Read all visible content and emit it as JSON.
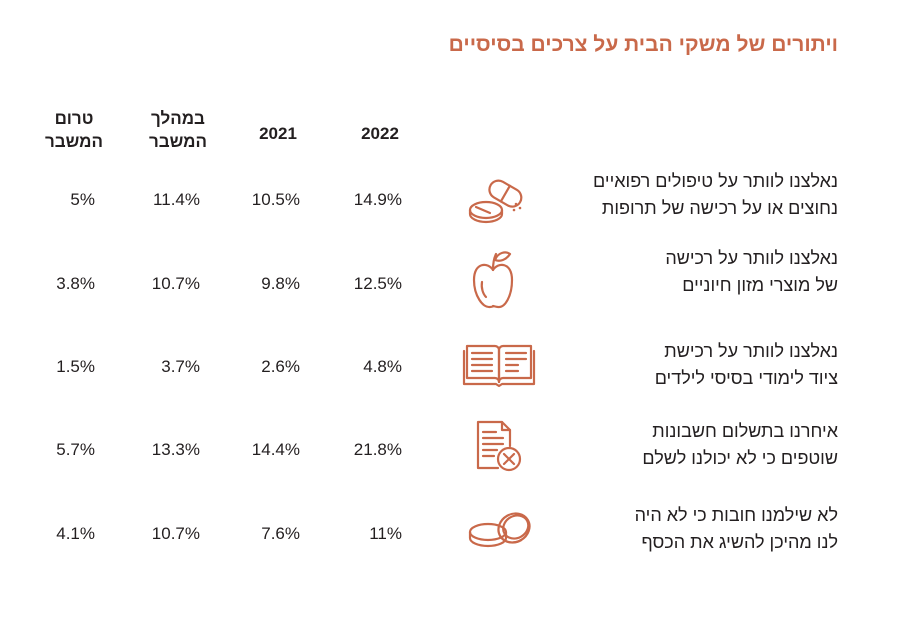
{
  "title": "ויתורים של משקי הבית על צרכים בסיסיים",
  "colors": {
    "accent": "#c9694a",
    "text": "#231f20"
  },
  "columns": [
    {
      "key": "y2022",
      "label": "2022"
    },
    {
      "key": "y2021",
      "label": "2021"
    },
    {
      "key": "during",
      "line1": "במהלך",
      "line2": "המשבר"
    },
    {
      "key": "before",
      "line1": "טרום",
      "line2": "המשבר"
    }
  ],
  "rows": [
    {
      "icon": "pills-icon",
      "line1": "נאלצנו לוותר על טיפולים רפואיים",
      "line2": "נחוצים או על רכישה של תרופות",
      "y2022": "14.9%",
      "y2021": "10.5%",
      "during": "11.4%",
      "before": "5%"
    },
    {
      "icon": "apple-icon",
      "line1": "נאלצנו לוותר על רכישה",
      "line2": "של מוצרי מזון חיוניים",
      "y2022": "12.5%",
      "y2021": "9.8%",
      "during": "10.7%",
      "before": "3.8%"
    },
    {
      "icon": "open-book-icon",
      "line1": "נאלצנו לוותר על רכישת",
      "line2": "ציוד לימודי בסיסי לילדים",
      "y2022": "4.8%",
      "y2021": "2.6%",
      "during": "3.7%",
      "before": "1.5%"
    },
    {
      "icon": "cancelled-bill-icon",
      "line1": "איחרנו בתשלום חשבונות",
      "line2": "שוטפים כי לא יכולנו לשלם",
      "y2022": "21.8%",
      "y2021": "14.4%",
      "during": "13.3%",
      "before": "5.7%"
    },
    {
      "icon": "coins-icon",
      "line1": "לא שילמנו חובות כי לא היה",
      "line2": "לנו מהיכן להשיג את הכסף",
      "y2022": "11%",
      "y2021": "7.6%",
      "during": "10.7%",
      "before": "4.1%"
    }
  ],
  "chart_data": {
    "type": "table",
    "title": "ויתורים של משקי הבית על צרכים בסיסיים",
    "columns": [
      "2022",
      "2021",
      "במהלך המשבר",
      "טרום המשבר"
    ],
    "categories": [
      "נאלצנו לוותר על טיפולים רפואיים נחוצים או על רכישה של תרופות",
      "נאלצנו לוותר על רכישה של מוצרי מזון חיוניים",
      "נאלצנו לוותר על רכישת ציוד לימודי בסיסי לילדים",
      "איחרנו בתשלום חשבונות שוטפים כי לא יכולנו לשלם",
      "לא שילמנו חובות כי לא היה לנו מהיכן להשיג את הכסף"
    ],
    "series": [
      {
        "name": "2022",
        "values": [
          14.9,
          12.5,
          4.8,
          21.8,
          11
        ]
      },
      {
        "name": "2021",
        "values": [
          10.5,
          9.8,
          2.6,
          14.4,
          7.6
        ]
      },
      {
        "name": "במהלך המשבר",
        "values": [
          11.4,
          10.7,
          3.7,
          13.3,
          10.7
        ]
      },
      {
        "name": "טרום המשבר",
        "values": [
          5,
          3.8,
          1.5,
          5.7,
          4.1
        ]
      }
    ],
    "unit": "%"
  }
}
